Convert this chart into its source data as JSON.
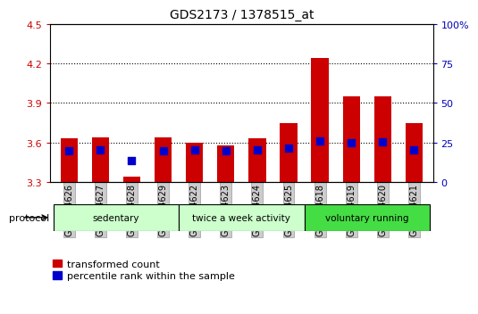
{
  "title": "GDS2173 / 1378515_at",
  "samples": [
    "GSM114626",
    "GSM114627",
    "GSM114628",
    "GSM114629",
    "GSM114622",
    "GSM114623",
    "GSM114624",
    "GSM114625",
    "GSM114618",
    "GSM114619",
    "GSM114620",
    "GSM114621"
  ],
  "bar_values": [
    3.63,
    3.64,
    3.34,
    3.64,
    3.6,
    3.58,
    3.63,
    3.75,
    4.24,
    3.95,
    3.95,
    3.75
  ],
  "percentile_values": [
    3.535,
    3.545,
    3.46,
    3.535,
    3.545,
    3.535,
    3.545,
    3.555,
    3.61,
    3.595,
    3.605,
    3.545
  ],
  "y_min": 3.3,
  "y_max": 4.5,
  "y_ticks": [
    3.3,
    3.6,
    3.9,
    4.2,
    4.5
  ],
  "y2_ticks": [
    0,
    25,
    50,
    75,
    100
  ],
  "groups": [
    {
      "label": "sedentary",
      "start": 0,
      "end": 4
    },
    {
      "label": "twice a week activity",
      "start": 4,
      "end": 8
    },
    {
      "label": "voluntary running",
      "start": 8,
      "end": 12
    }
  ],
  "group_colors": [
    "#ccffcc",
    "#ccffcc",
    "#44dd44"
  ],
  "bar_color": "#cc0000",
  "dot_color": "#0000cc",
  "bar_width": 0.55,
  "dot_size": 30,
  "left_tick_color": "#cc0000",
  "right_tick_color": "#0000bb",
  "legend_red_label": "transformed count",
  "legend_blue_label": "percentile rank within the sample"
}
